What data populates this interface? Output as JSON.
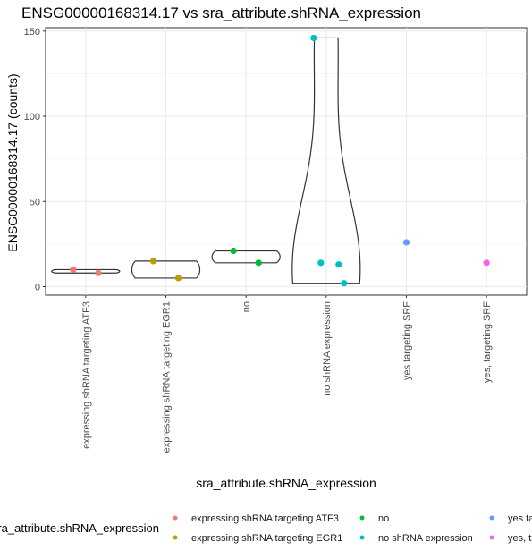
{
  "chart_data": {
    "type": "violin",
    "title": "ENSG00000168314.17 vs sra_attribute.shRNA_expression",
    "xlabel": "sra_attribute.shRNA_expression",
    "ylabel": "ENSG00000168314.17 (counts)",
    "ylim": [
      -5,
      152
    ],
    "yticks": [
      0,
      50,
      100,
      150
    ],
    "grid": true,
    "legend_position": "bottom",
    "legend_title": "sra_attribute.shRNA_expression",
    "categories": [
      "expressing shRNA targeting ATF3",
      "expressing shRNA targeting EGR1",
      "no",
      "no shRNA expression",
      "yes targeting SRF",
      "yes, targeting SRF"
    ],
    "colors": [
      "#F8766D",
      "#B79F00",
      "#00BA38",
      "#00BFC4",
      "#619CFF",
      "#F564E3"
    ],
    "series": [
      {
        "name": "expressing shRNA targeting ATF3",
        "points": [
          10,
          8
        ]
      },
      {
        "name": "expressing shRNA targeting EGR1",
        "points": [
          15,
          5
        ]
      },
      {
        "name": "no",
        "points": [
          21,
          14
        ]
      },
      {
        "name": "no shRNA expression",
        "points": [
          146,
          13,
          14,
          2
        ]
      },
      {
        "name": "yes targeting SRF",
        "points": [
          26
        ]
      },
      {
        "name": "yes, targeting SRF",
        "points": [
          14
        ]
      }
    ]
  }
}
